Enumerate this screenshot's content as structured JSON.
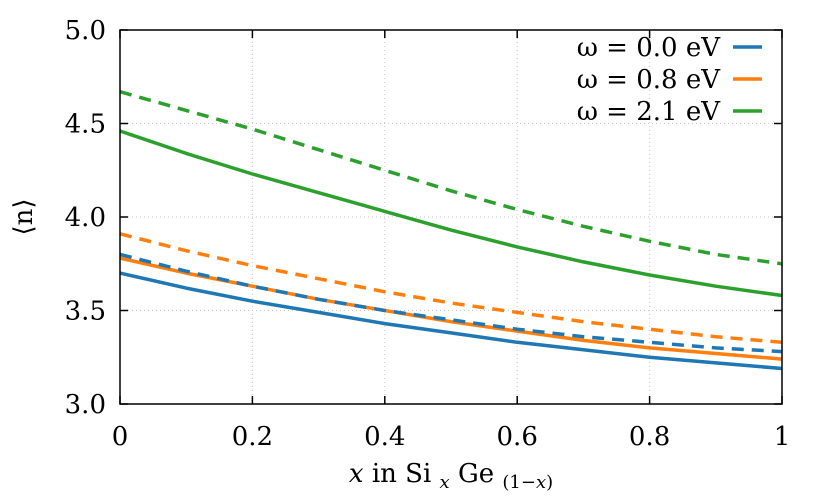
{
  "chart_data": {
    "type": "line",
    "title": "",
    "xlabel": "x in Si_xGe_(1−x)",
    "ylabel": "⟨n⟩",
    "xlim": [
      0,
      1
    ],
    "ylim": [
      3.0,
      5.0
    ],
    "x_ticks": [
      "0",
      "0.2",
      "0.4",
      "0.6",
      "0.8",
      "1"
    ],
    "y_ticks": [
      "3.0",
      "3.5",
      "4.0",
      "4.5",
      "5.0"
    ],
    "grid": true,
    "legend_position": "top-right",
    "x": [
      0,
      0.1,
      0.2,
      0.3,
      0.4,
      0.5,
      0.6,
      0.7,
      0.8,
      0.9,
      1.0
    ],
    "series": [
      {
        "name": "ω = 0.0 eV",
        "color": "#1f77b4",
        "style": "solid",
        "values": [
          3.7,
          3.62,
          3.55,
          3.49,
          3.43,
          3.38,
          3.33,
          3.29,
          3.25,
          3.22,
          3.19
        ]
      },
      {
        "name": "ω = 0.8 eV",
        "color": "#ff7f0e",
        "style": "solid",
        "values": [
          3.78,
          3.7,
          3.63,
          3.56,
          3.5,
          3.44,
          3.39,
          3.34,
          3.3,
          3.27,
          3.24
        ]
      },
      {
        "name": "ω = 2.1 eV",
        "color": "#2ca02c",
        "style": "solid",
        "values": [
          4.46,
          4.34,
          4.23,
          4.13,
          4.03,
          3.93,
          3.84,
          3.76,
          3.69,
          3.63,
          3.58
        ]
      },
      {
        "name": "",
        "color": "#1f77b4",
        "style": "dashed",
        "values": [
          3.8,
          3.71,
          3.63,
          3.56,
          3.5,
          3.45,
          3.4,
          3.36,
          3.33,
          3.3,
          3.28
        ]
      },
      {
        "name": "",
        "color": "#ff7f0e",
        "style": "dashed",
        "values": [
          3.91,
          3.82,
          3.74,
          3.67,
          3.6,
          3.54,
          3.49,
          3.44,
          3.4,
          3.36,
          3.33
        ]
      },
      {
        "name": "",
        "color": "#2ca02c",
        "style": "dashed",
        "values": [
          4.67,
          4.57,
          4.47,
          4.36,
          4.25,
          4.14,
          4.04,
          3.95,
          3.87,
          3.8,
          3.75
        ]
      }
    ]
  }
}
